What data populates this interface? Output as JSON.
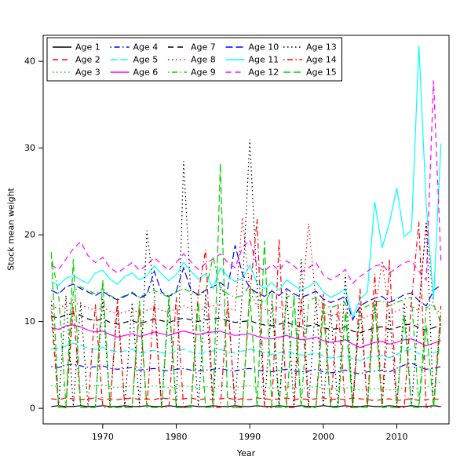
{
  "chart_data": {
    "type": "line",
    "title": "",
    "xlabel": "Year",
    "ylabel": "Stock mean weight",
    "grid": false,
    "legend_position": "top-left-inside",
    "xlim": [
      1961.9,
      2017.1
    ],
    "ylim": [
      -1.8,
      43.0
    ],
    "x_ticks": [
      1970,
      1980,
      1990,
      2000,
      2010
    ],
    "y_ticks": [
      0,
      10,
      20,
      30,
      40
    ],
    "x": [
      1963,
      1964,
      1965,
      1966,
      1967,
      1968,
      1969,
      1970,
      1971,
      1972,
      1973,
      1974,
      1975,
      1976,
      1977,
      1978,
      1979,
      1980,
      1981,
      1982,
      1983,
      1984,
      1985,
      1986,
      1987,
      1988,
      1989,
      1990,
      1991,
      1992,
      1993,
      1994,
      1995,
      1996,
      1997,
      1998,
      1999,
      2000,
      2001,
      2002,
      2003,
      2004,
      2005,
      2006,
      2007,
      2008,
      2009,
      2010,
      2011,
      2012,
      2013,
      2014,
      2015,
      2016
    ],
    "series": [
      {
        "name": "Age 1",
        "color": "#000000",
        "linetype": "solid",
        "values": [
          0.2,
          0.3,
          0.2,
          0.2,
          0.3,
          0.2,
          0.2,
          0.3,
          0.2,
          0.2,
          0.3,
          0.2,
          0.2,
          0.3,
          0.2,
          0.2,
          0.3,
          0.2,
          0.2,
          0.3,
          0.2,
          0.2,
          0.3,
          0.2,
          0.2,
          0.3,
          0.2,
          0.2,
          0.3,
          0.2,
          0.2,
          0.3,
          0.2,
          0.2,
          0.3,
          0.2,
          0.2,
          0.3,
          0.2,
          0.2,
          0.3,
          0.2,
          0.2,
          0.3,
          0.2,
          0.2,
          0.3,
          0.2,
          0.2,
          0.3,
          0.2,
          0.2,
          0.3,
          0.2
        ]
      },
      {
        "name": "Age 2",
        "color": "#FF0000",
        "linetype": "dashed",
        "values": [
          1.1,
          1.0,
          1.2,
          1.1,
          1.0,
          1.1,
          1.2,
          1.0,
          1.1,
          1.0,
          1.1,
          1.2,
          1.0,
          1.1,
          1.0,
          1.2,
          1.1,
          1.0,
          1.1,
          1.2,
          1.0,
          1.1,
          1.0,
          1.1,
          1.2,
          1.0,
          1.1,
          1.0,
          1.2,
          1.1,
          1.0,
          1.1,
          1.2,
          1.0,
          1.1,
          1.0,
          1.1,
          1.2,
          1.0,
          1.1,
          1.0,
          1.2,
          1.1,
          1.0,
          0.9,
          1.0,
          1.1,
          0.9,
          1.0,
          1.1,
          0.9,
          1.0,
          1.1,
          1.0
        ]
      },
      {
        "name": "Age 3",
        "color": "#00CD00",
        "linetype": "dotted",
        "values": [
          2.6,
          2.5,
          2.7,
          2.8,
          2.6,
          2.5,
          2.6,
          2.7,
          2.5,
          2.4,
          2.5,
          2.6,
          2.4,
          2.5,
          2.6,
          2.5,
          2.4,
          2.5,
          2.6,
          2.5,
          2.4,
          2.5,
          2.4,
          2.6,
          2.5,
          2.4,
          2.5,
          2.6,
          2.5,
          2.4,
          2.3,
          2.4,
          2.5,
          2.4,
          2.3,
          2.4,
          2.5,
          2.3,
          2.2,
          2.3,
          2.4,
          2.2,
          2.1,
          2.2,
          2.3,
          2.2,
          2.1,
          2.2,
          2.4,
          2.3,
          2.2,
          2.4,
          2.8,
          3.0
        ]
      },
      {
        "name": "Age 4",
        "color": "#0000FF",
        "linetype": "dotdash",
        "values": [
          4.8,
          4.7,
          5.0,
          5.1,
          4.9,
          4.7,
          4.8,
          4.9,
          4.6,
          4.5,
          4.6,
          4.7,
          4.4,
          4.5,
          4.6,
          4.4,
          4.3,
          4.5,
          4.6,
          4.4,
          4.3,
          4.4,
          4.5,
          4.6,
          4.4,
          4.3,
          4.5,
          4.6,
          4.4,
          4.3,
          4.2,
          4.4,
          4.5,
          4.3,
          4.2,
          4.3,
          4.5,
          4.2,
          4.1,
          4.2,
          4.4,
          4.1,
          4.0,
          4.2,
          4.3,
          4.4,
          4.2,
          4.6,
          5.0,
          5.2,
          4.8,
          4.5,
          4.6,
          4.8
        ]
      },
      {
        "name": "Age 5",
        "color": "#00FFFF",
        "linetype": "longdash",
        "values": [
          6.8,
          6.9,
          7.2,
          7.5,
          7.3,
          6.9,
          6.8,
          7.0,
          6.7,
          6.5,
          6.6,
          6.8,
          6.4,
          6.5,
          6.7,
          6.4,
          6.3,
          6.6,
          6.8,
          6.5,
          6.3,
          6.5,
          6.6,
          6.8,
          6.5,
          6.4,
          6.6,
          6.8,
          6.6,
          6.4,
          6.2,
          6.4,
          6.6,
          6.3,
          6.1,
          6.2,
          6.4,
          6.0,
          5.8,
          5.9,
          6.1,
          5.7,
          5.5,
          5.8,
          6.0,
          6.1,
          5.8,
          6.2,
          6.6,
          6.8,
          6.3,
          6.0,
          6.4,
          6.7
        ]
      },
      {
        "name": "Age 6",
        "color": "#FF00FF",
        "linetype": "solid",
        "values": [
          9.3,
          9.1,
          9.5,
          9.6,
          9.4,
          9.0,
          8.8,
          8.9,
          8.5,
          8.2,
          8.4,
          8.6,
          8.3,
          8.5,
          8.8,
          8.6,
          8.4,
          8.7,
          8.9,
          8.7,
          8.5,
          8.7,
          8.8,
          8.9,
          8.6,
          8.4,
          8.5,
          8.6,
          8.3,
          8.1,
          8.0,
          8.2,
          8.4,
          8.1,
          7.9,
          8.0,
          8.2,
          7.8,
          7.6,
          7.7,
          7.9,
          7.4,
          7.0,
          7.3,
          7.6,
          7.7,
          7.4,
          7.6,
          7.9,
          8.0,
          7.6,
          7.2,
          7.5,
          7.8
        ]
      },
      {
        "name": "Age 7",
        "color": "#000000",
        "linetype": "dashed",
        "values": [
          10.6,
          10.4,
          10.8,
          10.9,
          10.7,
          10.3,
          10.1,
          10.3,
          9.9,
          9.7,
          9.9,
          10.1,
          9.8,
          10.0,
          10.3,
          10.1,
          9.9,
          10.2,
          10.4,
          10.2,
          10.0,
          10.2,
          10.3,
          10.4,
          10.1,
          9.9,
          10.0,
          10.1,
          9.8,
          9.6,
          9.5,
          9.7,
          9.9,
          9.6,
          9.4,
          9.5,
          9.7,
          9.3,
          9.1,
          9.2,
          9.4,
          8.9,
          8.7,
          9.0,
          9.3,
          9.4,
          9.1,
          9.3,
          9.6,
          9.7,
          9.3,
          9.0,
          9.3,
          9.6
        ]
      },
      {
        "name": "Age 8",
        "color": "#FF0000",
        "linetype": "dotted",
        "values": [
          11.8,
          11.5,
          12.0,
          12.2,
          11.9,
          11.6,
          11.3,
          11.6,
          11.2,
          10.9,
          11.1,
          11.4,
          11.0,
          11.3,
          11.6,
          11.3,
          11.1,
          11.5,
          11.8,
          11.5,
          11.2,
          11.6,
          11.8,
          12.0,
          11.6,
          11.3,
          22.0,
          13.5,
          11.8,
          11.4,
          11.2,
          11.6,
          11.9,
          11.5,
          11.2,
          21.3,
          12.4,
          11.0,
          10.7,
          10.9,
          11.2,
          10.5,
          10.2,
          10.6,
          11.0,
          17.0,
          10.8,
          11.2,
          11.6,
          11.8,
          11.2,
          21.5,
          11.5,
          11.0
        ]
      },
      {
        "name": "Age 9",
        "color": "#00CD00",
        "linetype": "dotdash",
        "values": [
          17.5,
          13.2,
          0.3,
          13.5,
          14.0,
          13.6,
          13.2,
          13.8,
          13.0,
          12.6,
          13.0,
          13.4,
          12.8,
          13.2,
          13.6,
          13.2,
          12.8,
          13.4,
          13.8,
          13.4,
          13.0,
          13.5,
          17.5,
          13.8,
          13.2,
          12.8,
          13.0,
          14.2,
          12.6,
          12.2,
          13.6,
          0.3,
          12.8,
          13.2,
          0.3,
          12.4,
          12.8,
          12.0,
          11.6,
          11.9,
          12.2,
          0.3,
          11.4,
          11.8,
          12.2,
          12.4,
          11.8,
          12.2,
          12.6,
          12.8,
          0.3,
          11.6,
          12.0,
          9.8
        ]
      },
      {
        "name": "Age 10",
        "color": "#0000FF",
        "linetype": "longdash",
        "values": [
          13.6,
          13.2,
          14.0,
          14.3,
          13.8,
          13.4,
          13.0,
          13.5,
          12.9,
          12.5,
          12.9,
          13.3,
          12.7,
          13.1,
          15.8,
          13.4,
          12.9,
          13.5,
          16.2,
          13.6,
          13.1,
          13.6,
          14.0,
          14.5,
          13.8,
          18.8,
          15.5,
          13.9,
          13.3,
          12.9,
          13.5,
          13.0,
          13.8,
          13.2,
          12.8,
          13.1,
          13.5,
          12.6,
          12.2,
          12.5,
          12.9,
          10.2,
          11.8,
          12.3,
          12.7,
          12.9,
          12.2,
          12.6,
          13.1,
          13.3,
          12.4,
          11.8,
          13.6,
          14.2
        ]
      },
      {
        "name": "Age 11",
        "color": "#00FFFF",
        "linetype": "solid",
        "values": [
          14.6,
          14.2,
          15.0,
          15.3,
          14.8,
          14.4,
          15.6,
          15.9,
          14.9,
          14.3,
          15.2,
          15.6,
          14.8,
          15.3,
          16.4,
          15.5,
          14.7,
          15.4,
          16.8,
          15.8,
          14.9,
          15.5,
          13.8,
          16.2,
          15.2,
          14.6,
          15.0,
          16.5,
          14.4,
          13.8,
          14.5,
          13.6,
          14.8,
          14.2,
          13.6,
          14.0,
          14.6,
          13.4,
          12.8,
          13.2,
          13.8,
          10.5,
          12.6,
          13.4,
          23.8,
          18.5,
          21.4,
          25.4,
          19.8,
          20.5,
          41.8,
          23.5,
          12.5,
          30.5
        ]
      },
      {
        "name": "Age 12",
        "color": "#FF00FF",
        "linetype": "dashed",
        "values": [
          16.5,
          16.0,
          17.2,
          18.4,
          19.2,
          17.6,
          16.8,
          17.4,
          16.2,
          15.6,
          16.2,
          16.8,
          15.9,
          16.5,
          17.4,
          16.6,
          15.9,
          16.8,
          17.8,
          16.9,
          16.0,
          16.7,
          17.2,
          17.8,
          16.8,
          16.2,
          18.5,
          19.4,
          16.4,
          15.8,
          16.6,
          15.9,
          17.0,
          16.4,
          15.7,
          16.2,
          16.8,
          15.4,
          14.8,
          15.3,
          16.0,
          14.4,
          15.2,
          15.8,
          16.4,
          16.6,
          15.6,
          16.2,
          16.8,
          17.0,
          15.8,
          14.8,
          37.8,
          17.0
        ]
      },
      {
        "name": "Age 13",
        "color": "#000000",
        "linetype": "dotted",
        "values": [
          12.4,
          0.2,
          13.0,
          0.2,
          12.2,
          0.2,
          0.2,
          12.6,
          0.2,
          11.8,
          0.2,
          12.2,
          0.2,
          20.5,
          13.4,
          0.2,
          12.0,
          0.2,
          28.5,
          12.8,
          0.2,
          13.2,
          0.2,
          14.0,
          12.6,
          0.2,
          13.8,
          31.0,
          14.2,
          0.2,
          12.4,
          0.2,
          13.6,
          0.2,
          17.2,
          0.2,
          12.8,
          0.2,
          11.4,
          0.2,
          15.5,
          0.2,
          12.0,
          0.2,
          12.6,
          0.2,
          11.2,
          0.2,
          12.2,
          0.2,
          11.6,
          21.4,
          0.2,
          11.0
        ]
      },
      {
        "name": "Age 14",
        "color": "#FF0000",
        "linetype": "dotdash",
        "values": [
          11.2,
          0.1,
          0.1,
          11.8,
          0.1,
          0.1,
          12.0,
          0.1,
          0.1,
          12.6,
          0.1,
          0.1,
          11.6,
          0.1,
          12.2,
          0.1,
          0.1,
          12.8,
          0.1,
          0.1,
          13.4,
          18.3,
          0.1,
          0.1,
          12.4,
          0.1,
          0.1,
          13.0,
          21.8,
          0.1,
          0.1,
          19.5,
          0.1,
          0.1,
          12.6,
          0.1,
          0.1,
          13.2,
          0.1,
          12.0,
          0.1,
          0.1,
          13.8,
          0.1,
          15.5,
          0.1,
          17.2,
          0.1,
          0.1,
          12.4,
          21.5,
          0.1,
          0.1,
          11.8
        ]
      },
      {
        "name": "Age 15",
        "color": "#00CD00",
        "linetype": "longdash",
        "values": [
          18.0,
          0.1,
          0.1,
          17.2,
          0.1,
          0.1,
          0.1,
          14.8,
          0.1,
          0.1,
          0.1,
          0.1,
          12.4,
          0.1,
          0.1,
          0.1,
          13.0,
          0.1,
          0.1,
          0.1,
          12.2,
          0.1,
          0.1,
          28.2,
          0.1,
          0.1,
          0.1,
          13.6,
          0.1,
          19.3,
          0.1,
          0.1,
          0.1,
          12.8,
          0.1,
          0.1,
          0.1,
          11.6,
          0.1,
          0.1,
          11.0,
          0.1,
          0.1,
          0.1,
          12.2,
          0.1,
          0.1,
          0.1,
          10.8,
          0.1,
          0.1,
          9.6,
          0.1,
          9.8
        ]
      }
    ]
  }
}
